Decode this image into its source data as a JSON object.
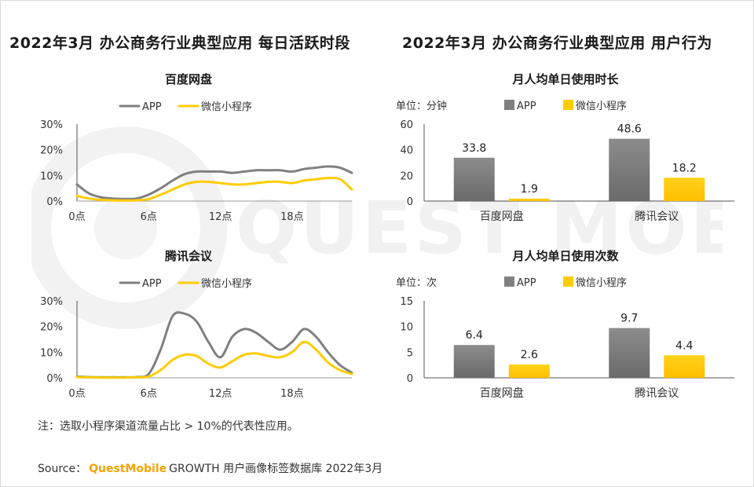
{
  "left_section_title": "2022年3月 办公商务行业典型应用 每日活跃时段",
  "right_section_title": "2022年3月 办公商务行业典型应用 用户行为",
  "colors": {
    "app": "#808080",
    "mini": "#ffcc00",
    "axis": "#666666"
  },
  "watermark_text": "QUEST MOBILE",
  "note": "注：选取小程序渠道流量占比 > 10%的代表性应用。",
  "source": {
    "label": "Source：",
    "brand": "QuestMobile",
    "text": "GROWTH 用户画像标签数据库 2022年3月"
  },
  "chart_data": [
    {
      "type": "line",
      "title": "百度网盘",
      "legend": [
        "APP",
        "微信小程序"
      ],
      "ylim": [
        0,
        30
      ],
      "yticks": [
        "30%",
        "20%",
        "10%",
        "0%"
      ],
      "ytick_values": [
        30,
        20,
        10,
        0
      ],
      "xlim": [
        0,
        23
      ],
      "xticks": [
        "0点",
        "6点",
        "12点",
        "18点"
      ],
      "xtick_values": [
        0,
        6,
        12,
        18
      ],
      "x": [
        0,
        1,
        2,
        3,
        4,
        5,
        6,
        7,
        8,
        9,
        10,
        11,
        12,
        13,
        14,
        15,
        16,
        17,
        18,
        19,
        20,
        21,
        22,
        23
      ],
      "series": [
        {
          "name": "APP",
          "values": [
            6.5,
            3.0,
            1.5,
            1.0,
            0.8,
            1.0,
            2.5,
            5.0,
            8.0,
            10.5,
            11.5,
            11.5,
            11.5,
            11.0,
            11.5,
            12.0,
            12.0,
            12.0,
            11.5,
            12.5,
            13.0,
            13.5,
            13.0,
            11.0
          ]
        },
        {
          "name": "微信小程序",
          "values": [
            2.0,
            1.0,
            0.5,
            0.3,
            0.2,
            0.3,
            0.8,
            2.5,
            4.5,
            6.5,
            7.5,
            7.5,
            7.0,
            6.5,
            6.5,
            7.0,
            7.5,
            7.5,
            7.0,
            8.0,
            8.5,
            9.0,
            8.5,
            4.5
          ]
        }
      ]
    },
    {
      "type": "line",
      "title": "腾讯会议",
      "legend": [
        "APP",
        "微信小程序"
      ],
      "ylim": [
        0,
        30
      ],
      "yticks": [
        "30%",
        "20%",
        "10%",
        "0%"
      ],
      "ytick_values": [
        30,
        20,
        10,
        0
      ],
      "xlim": [
        0,
        23
      ],
      "xticks": [
        "0点",
        "6点",
        "12点",
        "18点"
      ],
      "xtick_values": [
        0,
        6,
        12,
        18
      ],
      "x": [
        0,
        1,
        2,
        3,
        4,
        5,
        6,
        7,
        8,
        9,
        10,
        11,
        12,
        13,
        14,
        15,
        16,
        17,
        18,
        19,
        20,
        21,
        22,
        23
      ],
      "series": [
        {
          "name": "APP",
          "values": [
            0.5,
            0.3,
            0.2,
            0.2,
            0.2,
            0.3,
            1.5,
            11.0,
            24.0,
            25.0,
            22.0,
            14.0,
            8.0,
            16.0,
            19.0,
            17.5,
            14.0,
            11.0,
            14.0,
            19.0,
            16.0,
            10.0,
            5.0,
            2.0
          ]
        },
        {
          "name": "微信小程序",
          "values": [
            0.3,
            0.2,
            0.1,
            0.1,
            0.1,
            0.2,
            0.5,
            3.0,
            7.0,
            9.0,
            8.5,
            5.5,
            4.0,
            6.5,
            9.0,
            9.5,
            8.5,
            8.0,
            10.0,
            14.0,
            11.0,
            6.0,
            3.0,
            1.5
          ]
        }
      ]
    },
    {
      "type": "bar",
      "title": "月人均单日使用时长",
      "unit_label": "单位：分钟",
      "legend": [
        "APP",
        "微信小程序"
      ],
      "ylim": [
        0,
        60
      ],
      "yticks": [
        "60",
        "40",
        "20",
        "0"
      ],
      "ytick_values": [
        60,
        40,
        20,
        0
      ],
      "categories": [
        "百度网盘",
        "腾讯会议"
      ],
      "series": [
        {
          "name": "APP",
          "values": [
            33.8,
            48.6
          ],
          "labels": [
            "33.8",
            "48.6"
          ]
        },
        {
          "name": "微信小程序",
          "values": [
            1.9,
            18.2
          ],
          "labels": [
            "1.9",
            "18.2"
          ]
        }
      ]
    },
    {
      "type": "bar",
      "title": "月人均单日使用次数",
      "unit_label": "单位：次",
      "legend": [
        "APP",
        "微信小程序"
      ],
      "ylim": [
        0,
        15
      ],
      "yticks": [
        "15",
        "10",
        "5",
        "0"
      ],
      "ytick_values": [
        15,
        10,
        5,
        0
      ],
      "categories": [
        "百度网盘",
        "腾讯会议"
      ],
      "series": [
        {
          "name": "APP",
          "values": [
            6.4,
            9.7
          ],
          "labels": [
            "6.4",
            "9.7"
          ]
        },
        {
          "name": "微信小程序",
          "values": [
            2.6,
            4.4
          ],
          "labels": [
            "2.6",
            "4.4"
          ]
        }
      ]
    }
  ]
}
